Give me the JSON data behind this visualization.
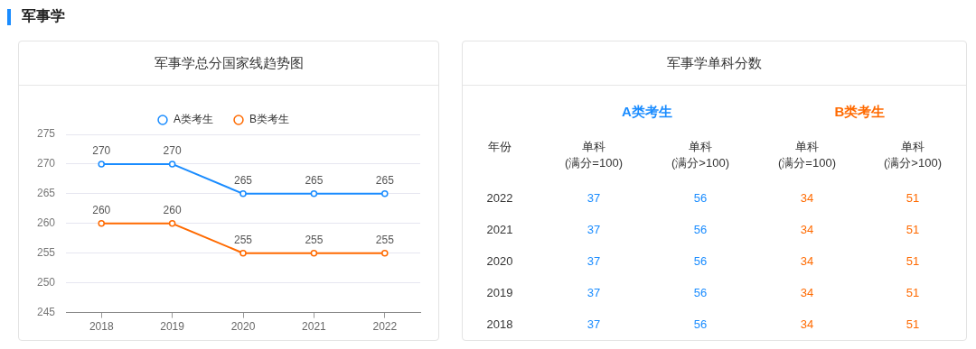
{
  "chart_data": [
    {
      "type": "line",
      "title": "军事学总分国家线趋势图",
      "annotations": [
        "军事学"
      ],
      "categories": [
        "2018",
        "2019",
        "2020",
        "2021",
        "2022"
      ],
      "series": [
        {
          "name": "A类考生",
          "color": "#1a8cff",
          "values": [
            270,
            270,
            265,
            265,
            265
          ]
        },
        {
          "name": "B类考生",
          "color": "#ff6a00",
          "values": [
            260,
            260,
            255,
            255,
            255
          ]
        }
      ],
      "ylim": [
        245,
        275
      ],
      "yticks": [
        245,
        250,
        255,
        260,
        265,
        270,
        275
      ],
      "grid": "y",
      "legend": "top",
      "marker": "circle",
      "data_labels": true
    },
    {
      "type": "heatmap",
      "title": "军事学单科分数",
      "annotations": [
        "A类考生",
        "B类考生",
        "年份"
      ],
      "categories": [
        "单科\n(满分=100)",
        "单科\n(满分>100)",
        "单科\n(满分=100)",
        "单科\n(满分>100)"
      ],
      "colors": [
        "#1a8cff",
        "#1a8cff",
        "#ff6a00",
        "#ff6a00"
      ],
      "y_categories": [
        "2022",
        "2021",
        "2020",
        "2019",
        "2018"
      ],
      "cells": [
        [
          37,
          56,
          34,
          51
        ],
        [
          37,
          56,
          34,
          51
        ],
        [
          37,
          56,
          34,
          51
        ],
        [
          37,
          56,
          34,
          51
        ],
        [
          37,
          56,
          34,
          51
        ]
      ],
      "data_labels": true
    }
  ]
}
